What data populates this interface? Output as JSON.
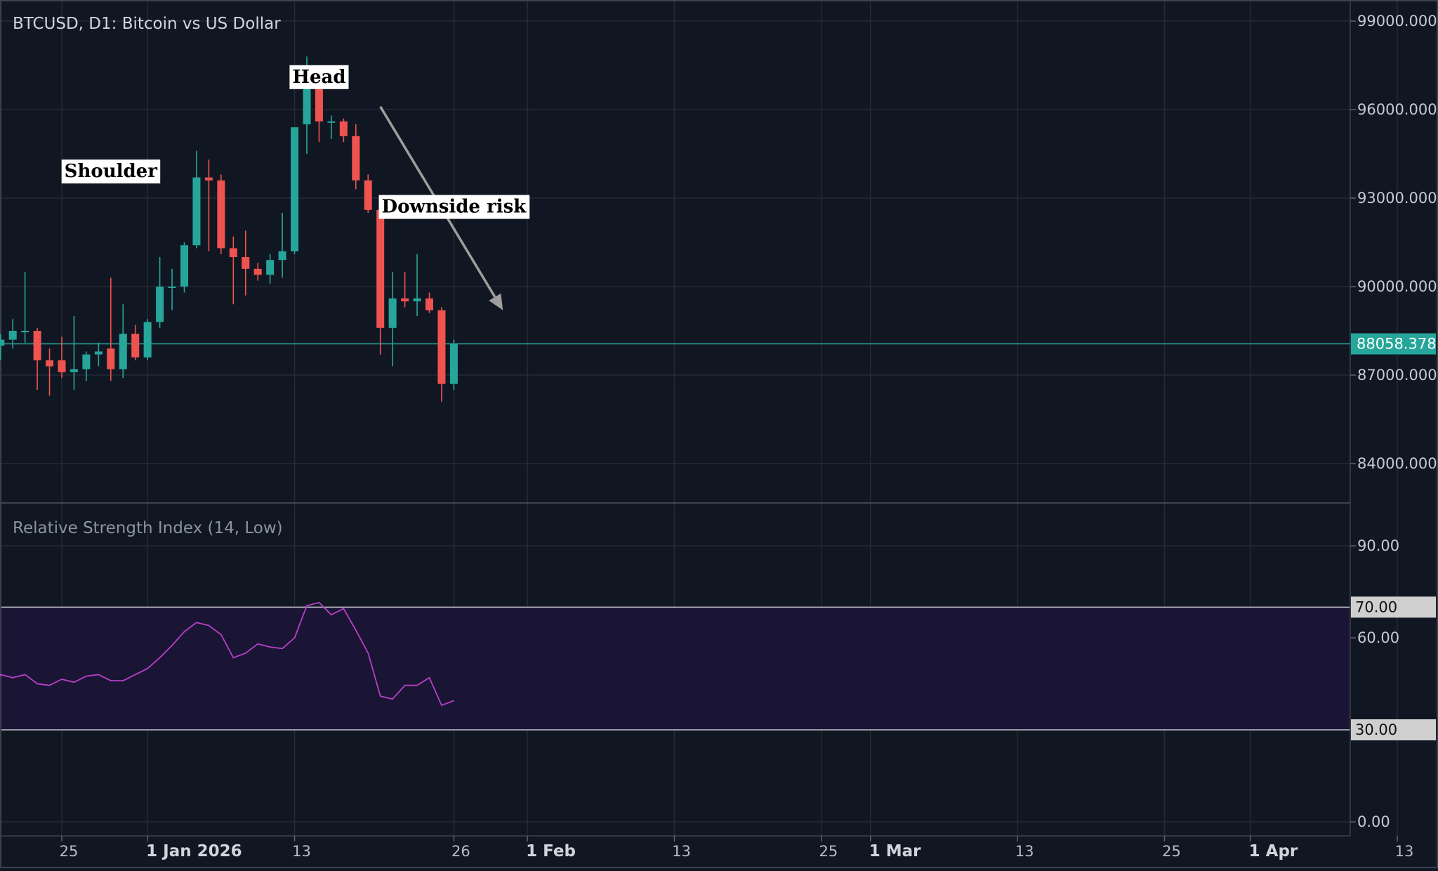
{
  "chart_data": [
    {
      "type": "candlestick",
      "title": "BTCUSD, D1: Bitcoin vs US Dollar",
      "symbol": "BTCUSD",
      "timeframe": "D1",
      "ylim": [
        82800,
        99300
      ],
      "y_ticks": [
        "99000.000",
        "96000.000",
        "93000.000",
        "90000.000",
        "87000.000",
        "84000.000"
      ],
      "y_tick_values": [
        99000,
        96000,
        93000,
        90000,
        87000,
        84000
      ],
      "current_price": 88058.378,
      "current_price_label": "88058.378",
      "x_tick_labels": [
        {
          "label": "25",
          "date": "2025-12-25",
          "bold": false
        },
        {
          "label": "1 Jan 2026",
          "date": "2026-01-01",
          "bold": true
        },
        {
          "label": "13",
          "date": "2026-01-13",
          "bold": false
        },
        {
          "label": "26",
          "date": "2026-01-26",
          "bold": false
        },
        {
          "label": "1 Feb",
          "date": "2026-02-01",
          "bold": true
        },
        {
          "label": "13",
          "date": "2026-02-13",
          "bold": false
        },
        {
          "label": "25",
          "date": "2026-02-25",
          "bold": false
        },
        {
          "label": "1 Mar",
          "date": "2026-03-01",
          "bold": true
        },
        {
          "label": "13",
          "date": "2026-03-13",
          "bold": false
        },
        {
          "label": "25",
          "date": "2026-03-25",
          "bold": false
        },
        {
          "label": "1 Apr",
          "date": "2026-04-01",
          "bold": true
        },
        {
          "label": "13",
          "date": "2026-04-13",
          "bold": false
        },
        {
          "label": "25",
          "date": "2026-04-25",
          "bold": false
        }
      ],
      "candles": [
        {
          "date": "2025-12-19",
          "open": 85700,
          "high": 88300,
          "low": 85500,
          "close": 88100
        },
        {
          "date": "2025-12-20",
          "open": 88000,
          "high": 88400,
          "low": 87500,
          "close": 88200
        },
        {
          "date": "2025-12-21",
          "open": 88200,
          "high": 88900,
          "low": 87900,
          "close": 88500
        },
        {
          "date": "2025-12-22",
          "open": 88500,
          "high": 90500,
          "low": 88100,
          "close": 88500
        },
        {
          "date": "2025-12-23",
          "open": 88500,
          "high": 88600,
          "low": 86500,
          "close": 87500
        },
        {
          "date": "2025-12-24",
          "open": 87500,
          "high": 87900,
          "low": 86300,
          "close": 87300
        },
        {
          "date": "2025-12-25",
          "open": 87500,
          "high": 88300,
          "low": 86900,
          "close": 87100
        },
        {
          "date": "2025-12-26",
          "open": 87100,
          "high": 89000,
          "low": 86500,
          "close": 87200
        },
        {
          "date": "2025-12-27",
          "open": 87200,
          "high": 87800,
          "low": 86800,
          "close": 87700
        },
        {
          "date": "2025-12-28",
          "open": 87700,
          "high": 88100,
          "low": 87300,
          "close": 87800
        },
        {
          "date": "2025-12-29",
          "open": 87900,
          "high": 90300,
          "low": 86800,
          "close": 87200
        },
        {
          "date": "2025-12-30",
          "open": 87200,
          "high": 89400,
          "low": 86900,
          "close": 88400
        },
        {
          "date": "2025-12-31",
          "open": 88400,
          "high": 88700,
          "low": 87500,
          "close": 87600
        },
        {
          "date": "2026-01-01",
          "open": 87600,
          "high": 88900,
          "low": 87500,
          "close": 88800
        },
        {
          "date": "2026-01-02",
          "open": 88800,
          "high": 91000,
          "low": 88600,
          "close": 90000
        },
        {
          "date": "2026-01-03",
          "open": 90000,
          "high": 90600,
          "low": 89200,
          "close": 90000
        },
        {
          "date": "2026-01-04",
          "open": 90000,
          "high": 91500,
          "low": 89800,
          "close": 91400
        },
        {
          "date": "2026-01-05",
          "open": 91400,
          "high": 94600,
          "low": 91300,
          "close": 93700
        },
        {
          "date": "2026-01-06",
          "open": 93700,
          "high": 94300,
          "low": 91200,
          "close": 93600
        },
        {
          "date": "2026-01-07",
          "open": 93600,
          "high": 93800,
          "low": 91100,
          "close": 91300
        },
        {
          "date": "2026-01-08",
          "open": 91300,
          "high": 91700,
          "low": 89400,
          "close": 91000
        },
        {
          "date": "2026-01-09",
          "open": 91000,
          "high": 91900,
          "low": 89700,
          "close": 90600
        },
        {
          "date": "2026-01-10",
          "open": 90600,
          "high": 90800,
          "low": 90200,
          "close": 90400
        },
        {
          "date": "2026-01-11",
          "open": 90400,
          "high": 91100,
          "low": 90100,
          "close": 90900
        },
        {
          "date": "2026-01-12",
          "open": 90900,
          "high": 92500,
          "low": 90300,
          "close": 91200
        },
        {
          "date": "2026-01-13",
          "open": 91200,
          "high": 95400,
          "low": 91100,
          "close": 95400
        },
        {
          "date": "2026-01-14",
          "open": 95500,
          "high": 97800,
          "low": 94500,
          "close": 96900
        },
        {
          "date": "2026-01-15",
          "open": 96900,
          "high": 97100,
          "low": 94900,
          "close": 95600
        },
        {
          "date": "2026-01-16",
          "open": 95600,
          "high": 95800,
          "low": 95000,
          "close": 95600
        },
        {
          "date": "2026-01-17",
          "open": 95600,
          "high": 95700,
          "low": 94900,
          "close": 95100
        },
        {
          "date": "2026-01-18",
          "open": 95100,
          "high": 95500,
          "low": 93300,
          "close": 93600
        },
        {
          "date": "2026-01-19",
          "open": 93600,
          "high": 93800,
          "low": 92500,
          "close": 92600
        },
        {
          "date": "2026-01-20",
          "open": 92600,
          "high": 92800,
          "low": 87700,
          "close": 88600
        },
        {
          "date": "2026-01-21",
          "open": 88600,
          "high": 90500,
          "low": 87300,
          "close": 89600
        },
        {
          "date": "2026-01-22",
          "open": 89600,
          "high": 90500,
          "low": 89300,
          "close": 89500
        },
        {
          "date": "2026-01-23",
          "open": 89500,
          "high": 91100,
          "low": 89000,
          "close": 89600
        },
        {
          "date": "2026-01-24",
          "open": 89600,
          "high": 89800,
          "low": 89100,
          "close": 89200
        },
        {
          "date": "2026-01-25",
          "open": 89200,
          "high": 89300,
          "low": 86100,
          "close": 86700
        },
        {
          "date": "2026-01-26",
          "open": 86700,
          "high": 88200,
          "low": 86500,
          "close": 88058
        }
      ],
      "colors": {
        "up": "#26a69a",
        "down": "#ef5350",
        "price_line": "#26a69a"
      },
      "annotations": [
        {
          "text": "Head",
          "date": "2026-01-15",
          "price": 97100
        },
        {
          "text": "Shoulder",
          "date": "2025-12-29",
          "price": 93900
        },
        {
          "text": "Downside risk",
          "date": "2026-01-26",
          "price": 92700
        }
      ],
      "arrow": {
        "from_date": "2026-01-20",
        "from_price": 96100,
        "to_date": "2026-01-30",
        "to_price": 89200,
        "color": "#9e9e9e"
      },
      "grid": true
    },
    {
      "type": "line",
      "title": "Relative Strength Index (14, Low)",
      "ylim": [
        -4,
        106
      ],
      "y_ticks": [
        "90.00",
        "60.00",
        "0.00"
      ],
      "y_tick_values": [
        90,
        60,
        0
      ],
      "band": {
        "upper": 70,
        "lower": 30,
        "upper_label": "70.00",
        "lower_label": "30.00",
        "fill": "#1a1435"
      },
      "line_color": "#b93fc7",
      "points": [
        {
          "date": "2025-12-19",
          "value": 41
        },
        {
          "date": "2025-12-20",
          "value": 48
        },
        {
          "date": "2025-12-21",
          "value": 47
        },
        {
          "date": "2025-12-22",
          "value": 48
        },
        {
          "date": "2025-12-23",
          "value": 45
        },
        {
          "date": "2025-12-24",
          "value": 44.5
        },
        {
          "date": "2025-12-25",
          "value": 46.5
        },
        {
          "date": "2025-12-26",
          "value": 45.5
        },
        {
          "date": "2025-12-27",
          "value": 47.5
        },
        {
          "date": "2025-12-28",
          "value": 48
        },
        {
          "date": "2025-12-29",
          "value": 46
        },
        {
          "date": "2025-12-30",
          "value": 46
        },
        {
          "date": "2025-12-31",
          "value": 48
        },
        {
          "date": "2026-01-01",
          "value": 50
        },
        {
          "date": "2026-01-02",
          "value": 53.5
        },
        {
          "date": "2026-01-03",
          "value": 57.5
        },
        {
          "date": "2026-01-04",
          "value": 62
        },
        {
          "date": "2026-01-05",
          "value": 65
        },
        {
          "date": "2026-01-06",
          "value": 64
        },
        {
          "date": "2026-01-07",
          "value": 61
        },
        {
          "date": "2026-01-08",
          "value": 53.5
        },
        {
          "date": "2026-01-09",
          "value": 55
        },
        {
          "date": "2026-01-10",
          "value": 58
        },
        {
          "date": "2026-01-11",
          "value": 57
        },
        {
          "date": "2026-01-12",
          "value": 56.5
        },
        {
          "date": "2026-01-13",
          "value": 60
        },
        {
          "date": "2026-01-14",
          "value": 70.5
        },
        {
          "date": "2026-01-15",
          "value": 71.5
        },
        {
          "date": "2026-01-16",
          "value": 67.5
        },
        {
          "date": "2026-01-17",
          "value": 69.5
        },
        {
          "date": "2026-01-18",
          "value": 62.5
        },
        {
          "date": "2026-01-19",
          "value": 55
        },
        {
          "date": "2026-01-20",
          "value": 41
        },
        {
          "date": "2026-01-21",
          "value": 40
        },
        {
          "date": "2026-01-22",
          "value": 44.5
        },
        {
          "date": "2026-01-23",
          "value": 44.5
        },
        {
          "date": "2026-01-24",
          "value": 47
        },
        {
          "date": "2026-01-25",
          "value": 38
        },
        {
          "date": "2026-01-26",
          "value": 39.5
        }
      ]
    }
  ]
}
